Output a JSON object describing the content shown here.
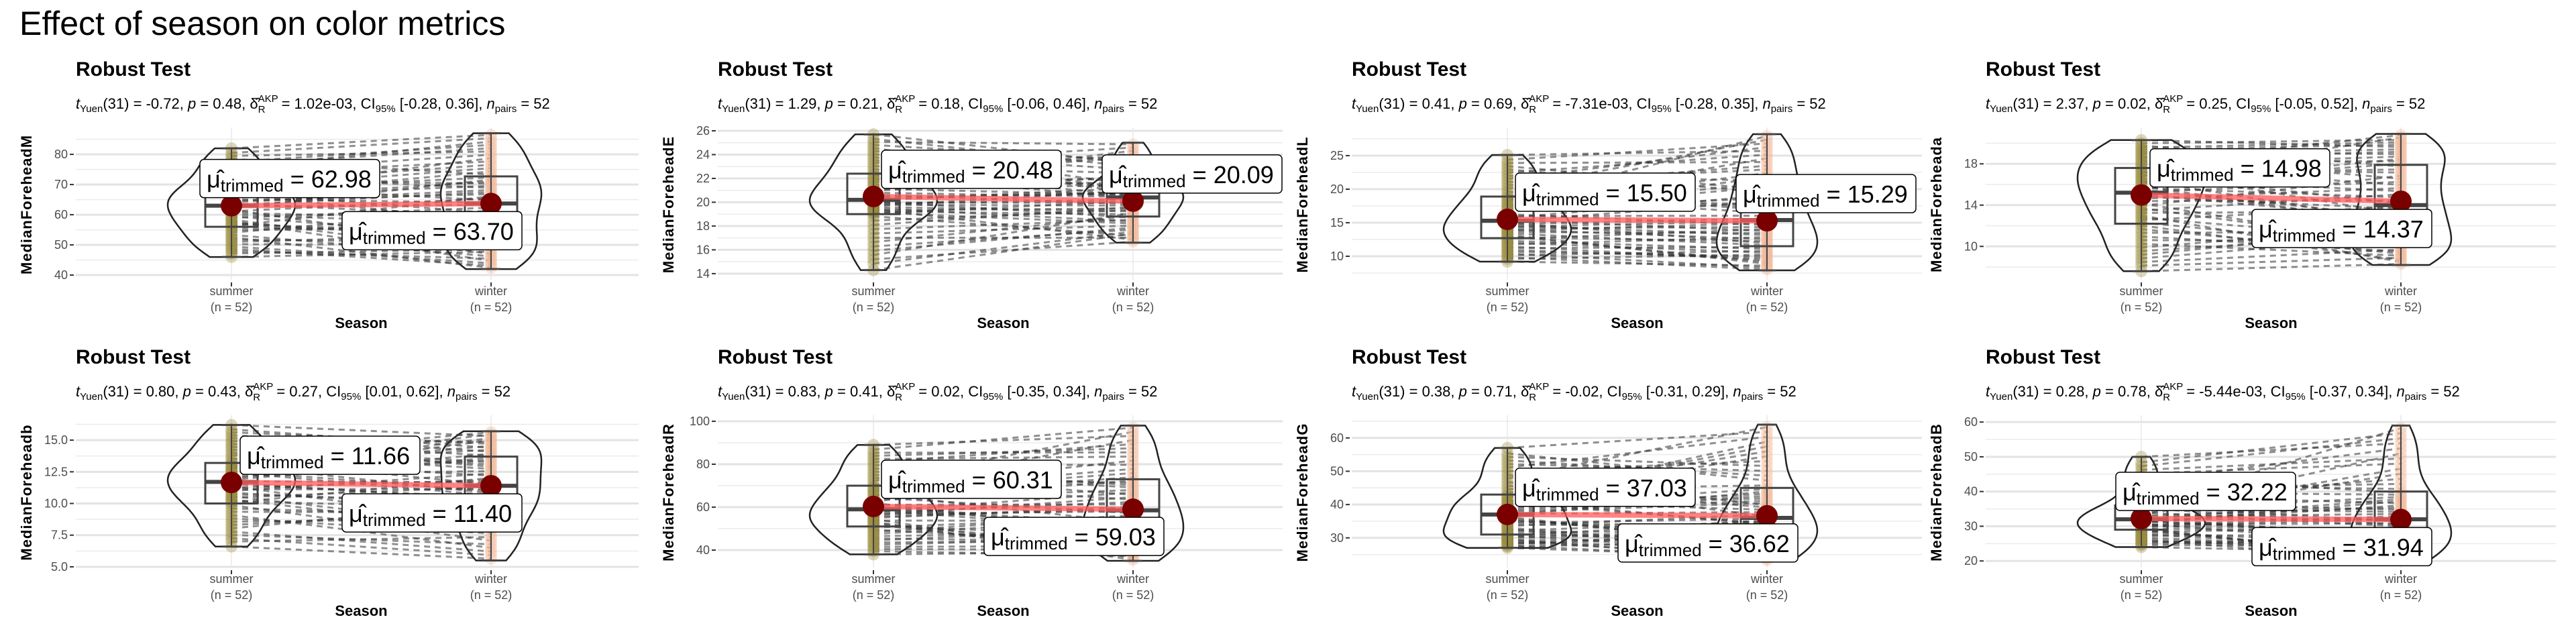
{
  "title": "Effect of season on color metrics",
  "colors": {
    "summer": "#9C8D3C",
    "winter": "#F2B799",
    "mean_point": "#7A0000",
    "mean_line": "#FF5A5A",
    "box": "#444444",
    "paired_lines": "#333333"
  },
  "subtitle_labels": {
    "t": "t",
    "yuen": "Yuen",
    "p": "p",
    "delta": "δ̂",
    "akp": "AKP",
    "r": "R",
    "ci": "CI",
    "ci_level": "95%",
    "n": "n",
    "pairs": "pairs"
  },
  "mean_label": {
    "mu": "μ̂",
    "trimmed": "trimmed"
  },
  "chart_data": [
    {
      "type": "violin-box",
      "title": "Robust Test",
      "ylabel": "MedianForeheadM",
      "xlabel": "Season",
      "categories": [
        "summer",
        "winter"
      ],
      "category_counts": [
        "(n = 52)",
        "(n = 52)"
      ],
      "yticks": [
        "40",
        "50",
        "60",
        "70",
        "80"
      ],
      "ylim": [
        38.9,
        87.8
      ],
      "grid": true,
      "stats": {
        "df": "31",
        "t": "-0.72",
        "p": "0.48",
        "effsize": "1.02e-03",
        "ci": "[-0.28, 0.36]",
        "n_pairs": "52"
      },
      "summary": [
        {
          "min": 46,
          "q1": 56,
          "median": 63,
          "q3": 69,
          "max": 82
        },
        {
          "min": 42,
          "q1": 52,
          "median": 63.7,
          "q3": 72.7,
          "max": 87
        }
      ],
      "trimmed_means": [
        "62.98",
        "63.70"
      ],
      "label_positions": [
        "above",
        "below"
      ]
    },
    {
      "type": "violin-box",
      "title": "Robust Test",
      "ylabel": "MedianForeheadE",
      "xlabel": "Season",
      "categories": [
        "summer",
        "winter"
      ],
      "category_counts": [
        "(n = 52)",
        "(n = 52)"
      ],
      "yticks": [
        "14",
        "16",
        "18",
        "20",
        "22",
        "24",
        "26"
      ],
      "ylim": [
        13.6,
        26
      ],
      "grid": true,
      "stats": {
        "df": "31",
        "t": "1.29",
        "p": "0.21",
        "effsize": "0.18",
        "ci": "[-0.06, 0.46]",
        "n_pairs": "52"
      },
      "summary": [
        {
          "min": 14.3,
          "q1": 19,
          "median": 20.2,
          "q3": 22.4,
          "max": 25.7
        },
        {
          "min": 16.6,
          "q1": 18.8,
          "median": 20.4,
          "q3": 21.5,
          "max": 25
        }
      ],
      "trimmed_means": [
        "20.48",
        "20.09"
      ],
      "label_positions": [
        "above",
        "above"
      ]
    },
    {
      "type": "violin-box",
      "title": "Robust Test",
      "ylabel": "MedianForeheadL",
      "xlabel": "Season",
      "categories": [
        "summer",
        "winter"
      ],
      "category_counts": [
        "(n = 52)",
        "(n = 52)"
      ],
      "yticks": [
        "10",
        "15",
        "20",
        "25"
      ],
      "ylim": [
        6.7,
        28.7
      ],
      "grid": true,
      "stats": {
        "df": "31",
        "t": "0.41",
        "p": "0.69",
        "effsize": "-7.31e-03",
        "ci": "[-0.28, 0.35]",
        "n_pairs": "52"
      },
      "summary": [
        {
          "min": 9.2,
          "q1": 12.7,
          "median": 15.3,
          "q3": 18.9,
          "max": 25.1
        },
        {
          "min": 7.9,
          "q1": 11.5,
          "median": 15.4,
          "q3": 21,
          "max": 28.2
        }
      ],
      "trimmed_means": [
        "15.50",
        "15.29"
      ],
      "label_positions": [
        "above",
        "above"
      ]
    },
    {
      "type": "violin-box",
      "title": "Robust Test",
      "ylabel": "MedianForeheada",
      "xlabel": "Season",
      "categories": [
        "summer",
        "winter"
      ],
      "category_counts": [
        "(n = 52)",
        "(n = 52)"
      ],
      "yticks": [
        "10",
        "14",
        "18"
      ],
      "ylim": [
        6.9,
        21.2
      ],
      "grid": true,
      "stats": {
        "df": "31",
        "t": "2.37",
        "p": "0.02",
        "effsize": "0.25",
        "ci": "[-0.05, 0.52]",
        "n_pairs": "52"
      },
      "summary": [
        {
          "min": 7.6,
          "q1": 12.2,
          "median": 15.2,
          "q3": 17.6,
          "max": 20.3
        },
        {
          "min": 8.2,
          "q1": 10.8,
          "median": 14.0,
          "q3": 17.9,
          "max": 20.9
        }
      ],
      "trimmed_means": [
        "14.98",
        "14.37"
      ],
      "label_positions": [
        "above",
        "below"
      ]
    },
    {
      "type": "violin-box",
      "title": "Robust Test",
      "ylabel": "MedianForeheadb",
      "xlabel": "Season",
      "categories": [
        "summer",
        "winter"
      ],
      "category_counts": [
        "(n = 52)",
        "(n = 52)"
      ],
      "yticks": [
        "5.0",
        "7.5",
        "10.0",
        "12.5",
        "15.0"
      ],
      "ylim": [
        5.05,
        16.7
      ],
      "grid": true,
      "stats": {
        "df": "31",
        "t": "0.80",
        "p": "0.43",
        "effsize": "0.27",
        "ci": "[0.01, 0.62]",
        "n_pairs": "52"
      },
      "summary": [
        {
          "min": 6.6,
          "q1": 10,
          "median": 11.7,
          "q3": 13.2,
          "max": 16.2
        },
        {
          "min": 5.5,
          "q1": 9.2,
          "median": 11.4,
          "q3": 13.7,
          "max": 15.7
        }
      ],
      "trimmed_means": [
        "11.66",
        "11.40"
      ],
      "label_positions": [
        "above",
        "below"
      ]
    },
    {
      "type": "violin-box",
      "title": "Robust Test",
      "ylabel": "MedianForeheadR",
      "xlabel": "Season",
      "categories": [
        "summer",
        "winter"
      ],
      "category_counts": [
        "(n = 52)",
        "(n = 52)"
      ],
      "yticks": [
        "40",
        "60",
        "80",
        "100"
      ],
      "ylim": [
        32.5,
        101.25
      ],
      "grid": true,
      "stats": {
        "df": "31",
        "t": "0.83",
        "p": "0.41",
        "effsize": "0.02",
        "ci": "[-0.35, 0.34]",
        "n_pairs": "52"
      },
      "summary": [
        {
          "min": 38,
          "q1": 51,
          "median": 59,
          "q3": 70,
          "max": 89
        },
        {
          "min": 35,
          "q1": 47,
          "median": 58.5,
          "q3": 73,
          "max": 98
        }
      ],
      "trimmed_means": [
        "60.31",
        "59.03"
      ],
      "label_positions": [
        "above",
        "below"
      ]
    },
    {
      "type": "violin-box",
      "title": "Robust Test",
      "ylabel": "MedianForeheadG",
      "xlabel": "Season",
      "categories": [
        "summer",
        "winter"
      ],
      "category_counts": [
        "(n = 52)",
        "(n = 52)"
      ],
      "yticks": [
        "30",
        "40",
        "50",
        "60"
      ],
      "ylim": [
        21.5,
        65.8
      ],
      "grid": true,
      "stats": {
        "df": "31",
        "t": "0.38",
        "p": "0.71",
        "effsize": "-0.02",
        "ci": "[-0.31, 0.29]",
        "n_pairs": "52"
      },
      "summary": [
        {
          "min": 27,
          "q1": 31,
          "median": 37,
          "q3": 43,
          "max": 57
        },
        {
          "min": 23,
          "q1": 30,
          "median": 36,
          "q3": 45,
          "max": 64
        }
      ],
      "trimmed_means": [
        "37.03",
        "36.62"
      ],
      "label_positions": [
        "above",
        "below"
      ]
    },
    {
      "type": "violin-box",
      "title": "Robust Test",
      "ylabel": "MedianForeheadB",
      "xlabel": "Season",
      "categories": [
        "summer",
        "winter"
      ],
      "category_counts": [
        "(n = 52)",
        "(n = 52)"
      ],
      "yticks": [
        "20",
        "30",
        "40",
        "50",
        "60"
      ],
      "ylim": [
        18.5,
        61
      ],
      "grid": true,
      "stats": {
        "df": "31",
        "t": "0.28",
        "p": "0.78",
        "effsize": "-5.44e-03",
        "ci": "[-0.37, 0.34]",
        "n_pairs": "52"
      },
      "summary": [
        {
          "min": 24,
          "q1": 29,
          "median": 32,
          "q3": 36,
          "max": 50
        },
        {
          "min": 20,
          "q1": 26,
          "median": 32,
          "q3": 40,
          "max": 59
        }
      ],
      "trimmed_means": [
        "32.22",
        "31.94"
      ],
      "label_positions": [
        "above",
        "below"
      ]
    }
  ]
}
